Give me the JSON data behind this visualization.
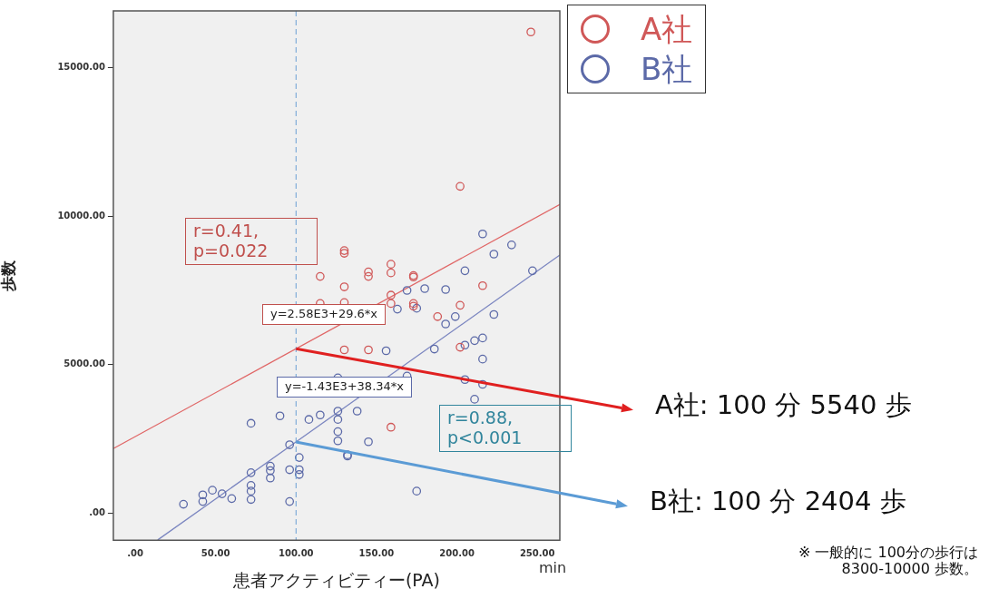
{
  "chart_data": {
    "type": "scatter",
    "xlabel": "患者アクティビティー(PA)",
    "ylabel": "歩数",
    "xlim": [
      -13.6,
      264
    ],
    "ylim": [
      -900,
      16900
    ],
    "xticks": [
      {
        "value": 0,
        "label": ".00"
      },
      {
        "value": 50,
        "label": "50.00"
      },
      {
        "value": 100,
        "label": "100.00"
      },
      {
        "value": 150,
        "label": "150.00"
      },
      {
        "value": 200,
        "label": "200.00"
      },
      {
        "value": 250,
        "label": "250.00"
      }
    ],
    "yticks": [
      {
        "value": 0,
        "label": ".00"
      },
      {
        "value": 5000,
        "label": "5000.00"
      },
      {
        "value": 10000,
        "label": "10000.00"
      },
      {
        "value": 15000,
        "label": "15000.00"
      }
    ],
    "grid": false,
    "legend": "top right",
    "marker": "circle",
    "series": [
      {
        "name": "A社",
        "color": "#d05858",
        "x": [
          130,
          130,
          115,
          145,
          145,
          159,
          159,
          173,
          173,
          130,
          115,
          130,
          159,
          159,
          173,
          173,
          188,
          202,
          216,
          202,
          130,
          145,
          159,
          246,
          202
        ],
        "values": [
          8840,
          8750,
          7970,
          8120,
          7970,
          8380,
          8090,
          8000,
          7950,
          7620,
          7060,
          7090,
          7340,
          7060,
          7060,
          6970,
          6620,
          7000,
          7660,
          5590,
          5500,
          5500,
          2900,
          16190,
          11000
        ]
      },
      {
        "name": "B社",
        "color": "#5c6aa8",
        "x": [
          216,
          234,
          223,
          205,
          247,
          169,
          180,
          193,
          163,
          175,
          199,
          193,
          223,
          205,
          211,
          216,
          186,
          156,
          216,
          205,
          216,
          211,
          169,
          126,
          138,
          126,
          126,
          115,
          108,
          90,
          72,
          126,
          126,
          145,
          132,
          132,
          175,
          96,
          102,
          96,
          102,
          102,
          84,
          84,
          84,
          72,
          72,
          72,
          72,
          96,
          42,
          42,
          48,
          54,
          60,
          30
        ],
        "values": [
          9400,
          9030,
          8720,
          8160,
          8160,
          7500,
          7560,
          7530,
          6870,
          6900,
          6620,
          6370,
          6690,
          5660,
          5810,
          5900,
          5530,
          5470,
          5190,
          4500,
          4340,
          3840,
          4620,
          4560,
          3440,
          3440,
          3160,
          3310,
          3160,
          3280,
          3030,
          2750,
          2440,
          2410,
          1970,
          1930,
          750,
          2310,
          1880,
          1470,
          1470,
          1310,
          1590,
          1440,
          1190,
          1370,
          940,
          750,
          470,
          400,
          625,
          400,
          780,
          660,
          500,
          310
        ]
      },
      {
        "type": "line",
        "marker": "none",
        "color": "#e06666",
        "x": [
          -13.6,
          264
        ],
        "values": [
          2180,
          10390
        ]
      },
      {
        "type": "line",
        "marker": "none",
        "color": "#7b86c0",
        "x": [
          14,
          264
        ],
        "values": [
          -890,
          8690
        ]
      }
    ],
    "ref_lines": [
      {
        "axis": "x",
        "value": 100,
        "color": "#6a9fd4",
        "line_style": "dashed"
      }
    ],
    "annotations": [
      "r=0.41,\np=0.022",
      "y=2.58E3+29.6*x",
      "y=-1.43E3+38.34*x",
      "r=0.88,\np<0.001",
      {
        "text": "A社: 100 分 5540 歩",
        "x": 100,
        "y": 5540
      },
      {
        "text": "B社: 100 分 2404 歩",
        "x": 100,
        "y": 2404
      },
      "※  一般的に 100分の歩行は\n8300-10000 歩数。",
      "min"
    ]
  }
}
